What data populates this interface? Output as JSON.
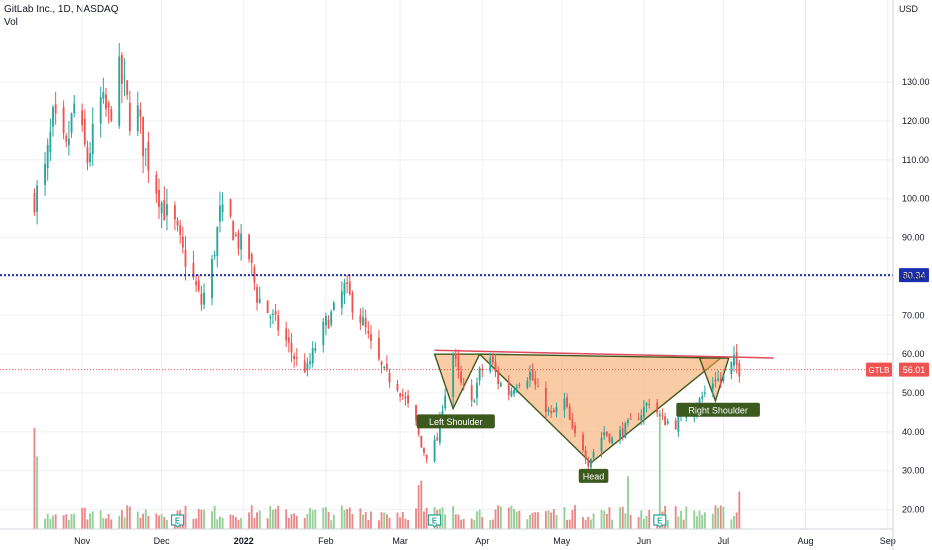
{
  "header": {
    "title": "GitLab Inc., 1D, NASDAQ",
    "vol_label": "Vol"
  },
  "currency": "USD",
  "colors": {
    "up": "#26a69a",
    "down": "#ef5350",
    "vol_up": "#81c784",
    "vol_down": "#e57373",
    "pattern_fill": "#f5a25d",
    "pattern_line": "#3d5a1e",
    "neckline": "#e04a5a",
    "blue_line": "#1a2fb0",
    "price_tag": "#ef5350",
    "blue_tag": "#1a2fb0"
  },
  "chart_data": {
    "type": "candlestick",
    "title": "GitLab Inc., 1D, NASDAQ",
    "symbol": "GTLB",
    "ylim": [
      15,
      146
    ],
    "yticks": [
      "20.00",
      "30.00",
      "40.00",
      "50.00",
      "60.00",
      "70.00",
      "80.00",
      "90.00",
      "100.00",
      "110.00",
      "120.00",
      "130.00"
    ],
    "x_tick_labels": [
      "Nov",
      "Dec",
      "2022",
      "Feb",
      "Mar",
      "Apr",
      "May",
      "Jun",
      "Jul",
      "Aug",
      "Sep"
    ],
    "current_price": 56.01,
    "current_price_label": "56.01",
    "symbol_label": "GTLB",
    "horizontal_line": 80.34,
    "horizontal_line_label": "80.34",
    "close_path": [
      [
        "2021-10-14",
        100
      ],
      [
        "2021-10-18",
        107
      ],
      [
        "2021-10-21",
        120
      ],
      [
        "2021-10-26",
        112
      ],
      [
        "2021-10-29",
        124
      ],
      [
        "2021-11-03",
        110
      ],
      [
        "2021-11-08",
        125
      ],
      [
        "2021-11-11",
        121
      ],
      [
        "2021-11-15",
        132
      ],
      [
        "2021-11-17",
        128
      ],
      [
        "2021-11-19",
        121
      ],
      [
        "2021-11-22",
        122
      ],
      [
        "2021-11-24",
        114
      ],
      [
        "2021-11-29",
        103
      ],
      [
        "2021-12-02",
        97
      ],
      [
        "2021-12-06",
        93
      ],
      [
        "2021-12-09",
        86
      ],
      [
        "2021-12-13",
        79
      ],
      [
        "2021-12-16",
        73
      ],
      [
        "2021-12-20",
        83
      ],
      [
        "2021-12-23",
        96
      ],
      [
        "2021-12-27",
        94
      ],
      [
        "2021-12-29",
        90
      ],
      [
        "2022-01-03",
        85
      ],
      [
        "2022-01-06",
        75
      ],
      [
        "2022-01-10",
        71
      ],
      [
        "2022-01-13",
        68
      ],
      [
        "2022-01-18",
        62
      ],
      [
        "2022-01-21",
        58
      ],
      [
        "2022-01-25",
        56
      ],
      [
        "2022-01-28",
        62
      ],
      [
        "2022-02-01",
        68
      ],
      [
        "2022-02-04",
        71
      ],
      [
        "2022-02-08",
        77
      ],
      [
        "2022-02-11",
        73
      ],
      [
        "2022-02-15",
        68
      ],
      [
        "2022-02-18",
        62
      ],
      [
        "2022-02-23",
        55
      ],
      [
        "2022-02-28",
        52
      ],
      [
        "2022-03-03",
        48
      ],
      [
        "2022-03-07",
        42
      ],
      [
        "2022-03-09",
        36
      ],
      [
        "2022-03-11",
        34
      ],
      [
        "2022-03-15",
        38
      ],
      [
        "2022-03-17",
        47
      ],
      [
        "2022-03-21",
        60
      ],
      [
        "2022-03-24",
        52
      ],
      [
        "2022-03-28",
        47
      ],
      [
        "2022-03-31",
        55
      ],
      [
        "2022-04-04",
        59
      ],
      [
        "2022-04-07",
        53
      ],
      [
        "2022-04-11",
        50
      ],
      [
        "2022-04-14",
        53
      ],
      [
        "2022-04-19",
        55
      ],
      [
        "2022-04-22",
        50
      ],
      [
        "2022-04-27",
        44
      ],
      [
        "2022-05-02",
        48
      ],
      [
        "2022-05-05",
        40
      ],
      [
        "2022-05-09",
        36
      ],
      [
        "2022-05-11",
        32
      ],
      [
        "2022-05-13",
        35
      ],
      [
        "2022-05-17",
        40
      ],
      [
        "2022-05-20",
        38
      ],
      [
        "2022-05-25",
        41
      ],
      [
        "2022-05-31",
        45
      ],
      [
        "2022-06-03",
        48
      ],
      [
        "2022-06-08",
        43
      ],
      [
        "2022-06-13",
        42
      ],
      [
        "2022-06-16",
        45
      ],
      [
        "2022-06-21",
        47
      ],
      [
        "2022-06-24",
        50
      ],
      [
        "2022-06-28",
        54
      ],
      [
        "2022-06-30",
        53
      ],
      [
        "2022-07-05",
        58
      ],
      [
        "2022-07-07",
        56
      ]
    ],
    "volume_spikes": [
      [
        "2021-10-14",
        46
      ],
      [
        "2021-10-15",
        33
      ],
      [
        "2022-03-08",
        20
      ],
      [
        "2022-03-09",
        22
      ],
      [
        "2022-05-26",
        24
      ],
      [
        "2022-06-07",
        54
      ],
      [
        "2022-07-07",
        17
      ]
    ],
    "earnings_markers": [
      {
        "date": "2021-12-07",
        "label": "E"
      },
      {
        "date": "2022-03-14",
        "label": "E"
      },
      {
        "date": "2022-06-07",
        "label": "E"
      }
    ],
    "pattern": {
      "name": "Inverse Head and Shoulders",
      "neckline": [
        [
          "2022-03-14",
          61
        ],
        [
          "2022-07-20",
          59
        ]
      ],
      "points": [
        [
          "2022-03-14",
          60
        ],
        [
          "2022-03-21",
          46
        ],
        [
          "2022-03-31",
          60
        ],
        [
          "2022-05-12",
          32
        ],
        [
          "2022-06-30",
          59
        ],
        [
          "2022-06-14",
          47
        ]
      ],
      "labels": [
        {
          "text": "Left Shoulder",
          "date": "2022-03-22",
          "price": 45
        },
        {
          "text": "Head",
          "date": "2022-05-13",
          "price": 31
        },
        {
          "text": "Right Shoulder",
          "date": "2022-06-29",
          "price": 48
        }
      ]
    }
  }
}
